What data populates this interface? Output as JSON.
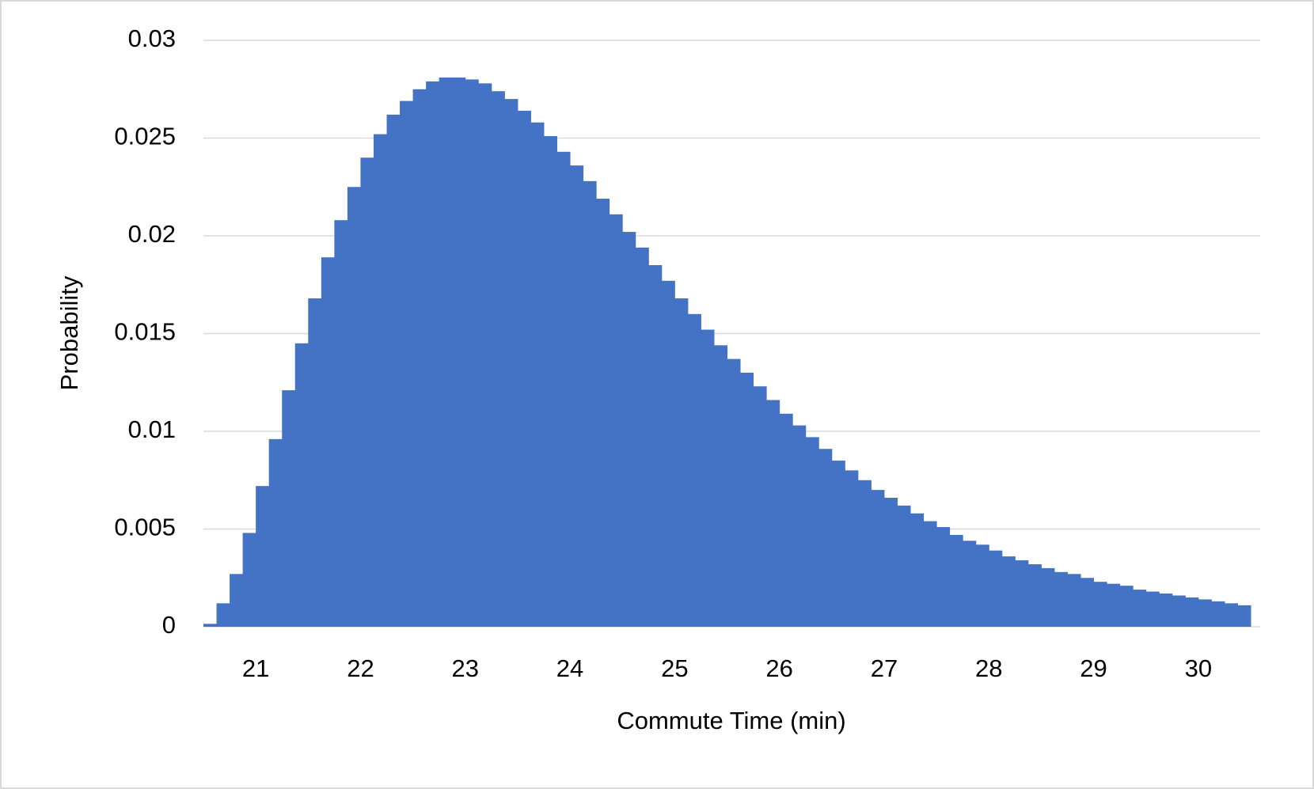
{
  "chart_data": {
    "type": "histogram",
    "x_label": "Commute Time (min)",
    "y_label": "Probability",
    "bins": [
      20.5,
      20.625,
      20.75,
      20.875,
      21,
      21.125,
      21.25,
      21.375,
      21.5,
      21.625,
      21.75,
      21.875,
      22,
      22.125,
      22.25,
      22.375,
      22.5,
      22.625,
      22.75,
      22.875,
      23,
      23.125,
      23.25,
      23.375,
      23.5,
      23.625,
      23.75,
      23.875,
      24,
      24.125,
      24.25,
      24.375,
      24.5,
      24.625,
      24.75,
      24.875,
      25,
      25.125,
      25.25,
      25.375,
      25.5,
      25.625,
      25.75,
      25.875,
      26,
      26.125,
      26.25,
      26.375,
      26.5,
      26.625,
      26.75,
      26.875,
      27,
      27.125,
      27.25,
      27.375,
      27.5,
      27.625,
      27.75,
      27.875,
      28,
      28.125,
      28.25,
      28.375,
      28.5,
      28.625,
      28.75,
      28.875,
      29,
      29.125,
      29.25,
      29.375,
      29.5,
      29.625,
      29.75,
      29.875,
      30,
      30.125,
      30.25,
      30.375,
      30.5
    ],
    "values": [
      0.00015,
      0.0012,
      0.0027,
      0.0048,
      0.0072,
      0.0096,
      0.0121,
      0.0145,
      0.0168,
      0.0189,
      0.0208,
      0.0225,
      0.024,
      0.0252,
      0.0262,
      0.0269,
      0.0275,
      0.0279,
      0.0281,
      0.0281,
      0.028,
      0.0278,
      0.0274,
      0.027,
      0.0264,
      0.0258,
      0.0251,
      0.0243,
      0.0236,
      0.0228,
      0.0219,
      0.0211,
      0.0202,
      0.0194,
      0.0185,
      0.0177,
      0.0168,
      0.016,
      0.0152,
      0.0144,
      0.0137,
      0.013,
      0.0123,
      0.0116,
      0.0109,
      0.0103,
      0.0097,
      0.0091,
      0.0085,
      0.008,
      0.0075,
      0.007,
      0.0066,
      0.0062,
      0.0058,
      0.0054,
      0.0051,
      0.0047,
      0.0044,
      0.0042,
      0.0039,
      0.0036,
      0.0034,
      0.0032,
      0.003,
      0.0028,
      0.0027,
      0.0025,
      0.0023,
      0.0022,
      0.0021,
      0.0019,
      0.0018,
      0.0017,
      0.0016,
      0.0015,
      0.0014,
      0.0013,
      0.0012,
      0.0011
    ],
    "color": "#4472c4",
    "xlim": [
      20.5,
      30.5
    ],
    "xticks": [
      21,
      22,
      23,
      24,
      25,
      26,
      27,
      28,
      29,
      30
    ],
    "ylim": [
      0,
      0.03
    ],
    "yticks": [
      0,
      0.005,
      0.01,
      0.015,
      0.02,
      0.025,
      0.03
    ],
    "grid": true
  }
}
